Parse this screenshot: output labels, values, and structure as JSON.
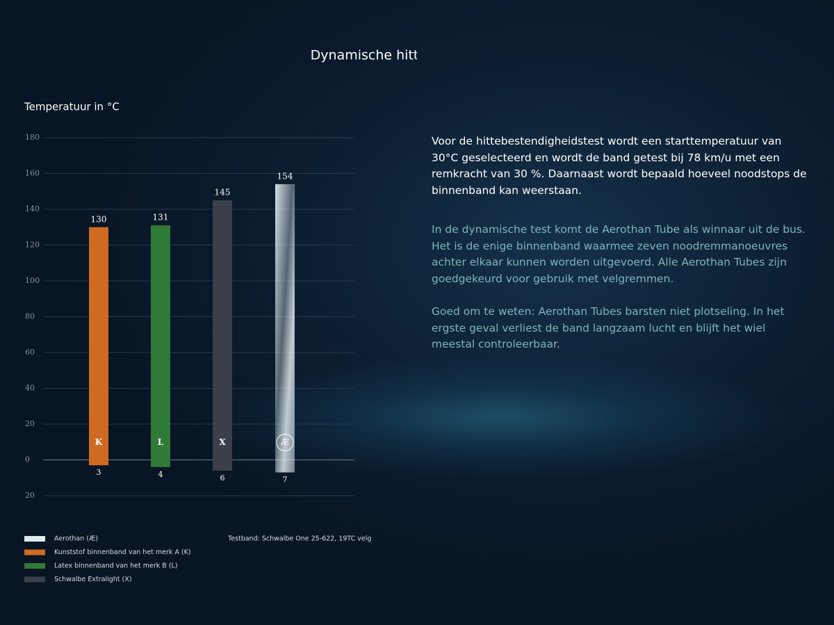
{
  "chart_data": {
    "type": "bar",
    "title": "Dynamische hittebestendigheid",
    "y_label": "Temperatuur in °C",
    "categories": [
      "K",
      "L",
      "X",
      "Æ"
    ],
    "values": [
      130,
      131,
      145,
      154
    ],
    "low_values": [
      -3,
      -4,
      -6,
      -7
    ],
    "low_labels": [
      "3",
      "4",
      "6",
      "7"
    ],
    "colors": [
      "#d06a22",
      "#2f7a36",
      "#3b3f4b",
      "#dfeaf0"
    ],
    "ylim": [
      -20,
      180
    ],
    "yticks": [
      {
        "value": -20,
        "label": "20"
      },
      0,
      20,
      40,
      60,
      80,
      100,
      120,
      140,
      160,
      180
    ],
    "grid": true,
    "legend": [
      {
        "name": "Aerothan (Æ)",
        "color": "#dfeaf0"
      },
      {
        "name": "Kunststof binnenband van het merk A (K)",
        "color": "#d06a22"
      },
      {
        "name": "Latex binnenband van het merk B (L)",
        "color": "#2f7a36"
      },
      {
        "name": "Schwalbe Extralight (X)",
        "color": "#3b3f4b"
      }
    ],
    "note": "Testband: Schwalbe One 25-622, 19TC velg"
  },
  "text": {
    "paragraphs": [
      "Voor de hittebestendigheidstest wordt een starttemperatuur van 30°C geselecteerd en wordt de band getest bij 78 km/u met een remkracht van 30 %. Daarnaast wordt bepaald hoeveel noodstops de binnenband kan weerstaan.",
      "In de dynamische test komt de Aerothan Tube als winnaar uit de bus. Het is de enige binnenband waarmee zeven noodremmanoeuvres achter elkaar kunnen worden uitgevoerd. Alle Aerothan Tubes zijn goedgekeurd voor gebruik met velgremmen.",
      "Goed om te weten: Aerothan Tubes barsten niet plotseling. In het ergste geval verliest de band langzaam lucht en blijft het wiel meestal controleerbaar."
    ]
  }
}
